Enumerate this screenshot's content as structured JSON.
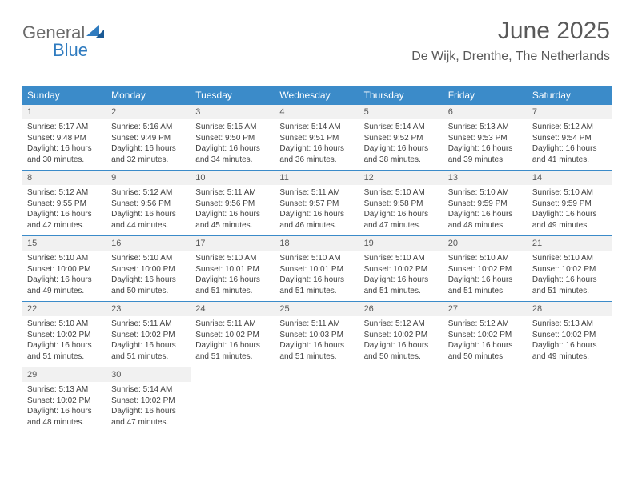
{
  "brand": {
    "part1": "General",
    "part2": "Blue"
  },
  "title": "June 2025",
  "subtitle": "De Wijk, Drenthe, The Netherlands",
  "colors": {
    "header_bg": "#3b8bc9",
    "header_text": "#ffffff",
    "daynum_bg": "#f1f1f1",
    "body_text": "#404040",
    "title_text": "#595959",
    "brand_gray": "#6b6b6b",
    "brand_blue": "#2f7bbf"
  },
  "dayHeaders": [
    "Sunday",
    "Monday",
    "Tuesday",
    "Wednesday",
    "Thursday",
    "Friday",
    "Saturday"
  ],
  "days": [
    {
      "num": "1",
      "sunrise": "Sunrise: 5:17 AM",
      "sunset": "Sunset: 9:48 PM",
      "d1": "Daylight: 16 hours",
      "d2": "and 30 minutes."
    },
    {
      "num": "2",
      "sunrise": "Sunrise: 5:16 AM",
      "sunset": "Sunset: 9:49 PM",
      "d1": "Daylight: 16 hours",
      "d2": "and 32 minutes."
    },
    {
      "num": "3",
      "sunrise": "Sunrise: 5:15 AM",
      "sunset": "Sunset: 9:50 PM",
      "d1": "Daylight: 16 hours",
      "d2": "and 34 minutes."
    },
    {
      "num": "4",
      "sunrise": "Sunrise: 5:14 AM",
      "sunset": "Sunset: 9:51 PM",
      "d1": "Daylight: 16 hours",
      "d2": "and 36 minutes."
    },
    {
      "num": "5",
      "sunrise": "Sunrise: 5:14 AM",
      "sunset": "Sunset: 9:52 PM",
      "d1": "Daylight: 16 hours",
      "d2": "and 38 minutes."
    },
    {
      "num": "6",
      "sunrise": "Sunrise: 5:13 AM",
      "sunset": "Sunset: 9:53 PM",
      "d1": "Daylight: 16 hours",
      "d2": "and 39 minutes."
    },
    {
      "num": "7",
      "sunrise": "Sunrise: 5:12 AM",
      "sunset": "Sunset: 9:54 PM",
      "d1": "Daylight: 16 hours",
      "d2": "and 41 minutes."
    },
    {
      "num": "8",
      "sunrise": "Sunrise: 5:12 AM",
      "sunset": "Sunset: 9:55 PM",
      "d1": "Daylight: 16 hours",
      "d2": "and 42 minutes."
    },
    {
      "num": "9",
      "sunrise": "Sunrise: 5:12 AM",
      "sunset": "Sunset: 9:56 PM",
      "d1": "Daylight: 16 hours",
      "d2": "and 44 minutes."
    },
    {
      "num": "10",
      "sunrise": "Sunrise: 5:11 AM",
      "sunset": "Sunset: 9:56 PM",
      "d1": "Daylight: 16 hours",
      "d2": "and 45 minutes."
    },
    {
      "num": "11",
      "sunrise": "Sunrise: 5:11 AM",
      "sunset": "Sunset: 9:57 PM",
      "d1": "Daylight: 16 hours",
      "d2": "and 46 minutes."
    },
    {
      "num": "12",
      "sunrise": "Sunrise: 5:10 AM",
      "sunset": "Sunset: 9:58 PM",
      "d1": "Daylight: 16 hours",
      "d2": "and 47 minutes."
    },
    {
      "num": "13",
      "sunrise": "Sunrise: 5:10 AM",
      "sunset": "Sunset: 9:59 PM",
      "d1": "Daylight: 16 hours",
      "d2": "and 48 minutes."
    },
    {
      "num": "14",
      "sunrise": "Sunrise: 5:10 AM",
      "sunset": "Sunset: 9:59 PM",
      "d1": "Daylight: 16 hours",
      "d2": "and 49 minutes."
    },
    {
      "num": "15",
      "sunrise": "Sunrise: 5:10 AM",
      "sunset": "Sunset: 10:00 PM",
      "d1": "Daylight: 16 hours",
      "d2": "and 49 minutes."
    },
    {
      "num": "16",
      "sunrise": "Sunrise: 5:10 AM",
      "sunset": "Sunset: 10:00 PM",
      "d1": "Daylight: 16 hours",
      "d2": "and 50 minutes."
    },
    {
      "num": "17",
      "sunrise": "Sunrise: 5:10 AM",
      "sunset": "Sunset: 10:01 PM",
      "d1": "Daylight: 16 hours",
      "d2": "and 51 minutes."
    },
    {
      "num": "18",
      "sunrise": "Sunrise: 5:10 AM",
      "sunset": "Sunset: 10:01 PM",
      "d1": "Daylight: 16 hours",
      "d2": "and 51 minutes."
    },
    {
      "num": "19",
      "sunrise": "Sunrise: 5:10 AM",
      "sunset": "Sunset: 10:02 PM",
      "d1": "Daylight: 16 hours",
      "d2": "and 51 minutes."
    },
    {
      "num": "20",
      "sunrise": "Sunrise: 5:10 AM",
      "sunset": "Sunset: 10:02 PM",
      "d1": "Daylight: 16 hours",
      "d2": "and 51 minutes."
    },
    {
      "num": "21",
      "sunrise": "Sunrise: 5:10 AM",
      "sunset": "Sunset: 10:02 PM",
      "d1": "Daylight: 16 hours",
      "d2": "and 51 minutes."
    },
    {
      "num": "22",
      "sunrise": "Sunrise: 5:10 AM",
      "sunset": "Sunset: 10:02 PM",
      "d1": "Daylight: 16 hours",
      "d2": "and 51 minutes."
    },
    {
      "num": "23",
      "sunrise": "Sunrise: 5:11 AM",
      "sunset": "Sunset: 10:02 PM",
      "d1": "Daylight: 16 hours",
      "d2": "and 51 minutes."
    },
    {
      "num": "24",
      "sunrise": "Sunrise: 5:11 AM",
      "sunset": "Sunset: 10:02 PM",
      "d1": "Daylight: 16 hours",
      "d2": "and 51 minutes."
    },
    {
      "num": "25",
      "sunrise": "Sunrise: 5:11 AM",
      "sunset": "Sunset: 10:03 PM",
      "d1": "Daylight: 16 hours",
      "d2": "and 51 minutes."
    },
    {
      "num": "26",
      "sunrise": "Sunrise: 5:12 AM",
      "sunset": "Sunset: 10:02 PM",
      "d1": "Daylight: 16 hours",
      "d2": "and 50 minutes."
    },
    {
      "num": "27",
      "sunrise": "Sunrise: 5:12 AM",
      "sunset": "Sunset: 10:02 PM",
      "d1": "Daylight: 16 hours",
      "d2": "and 50 minutes."
    },
    {
      "num": "28",
      "sunrise": "Sunrise: 5:13 AM",
      "sunset": "Sunset: 10:02 PM",
      "d1": "Daylight: 16 hours",
      "d2": "and 49 minutes."
    },
    {
      "num": "29",
      "sunrise": "Sunrise: 5:13 AM",
      "sunset": "Sunset: 10:02 PM",
      "d1": "Daylight: 16 hours",
      "d2": "and 48 minutes."
    },
    {
      "num": "30",
      "sunrise": "Sunrise: 5:14 AM",
      "sunset": "Sunset: 10:02 PM",
      "d1": "Daylight: 16 hours",
      "d2": "and 47 minutes."
    }
  ]
}
